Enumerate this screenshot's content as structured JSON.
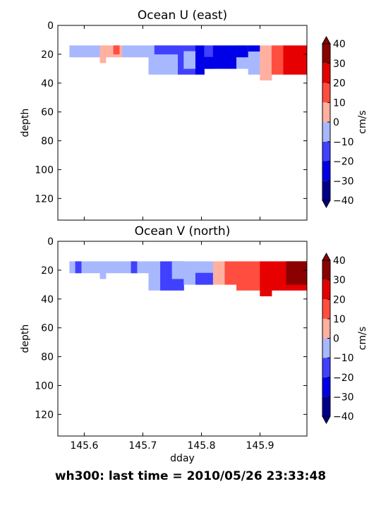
{
  "footer": {
    "text": "wh300: last time = 2010/05/26 23:33:48"
  },
  "colors": {
    "levels": [
      "#00008b",
      "#0000e8",
      "#4040ff",
      "#a8b8ff",
      "#ffb0a0",
      "#ff4e40",
      "#e60000",
      "#8b0000"
    ],
    "level_bounds": [
      -40,
      -30,
      -20,
      -10,
      0,
      10,
      20,
      30,
      40
    ]
  },
  "chart_data": [
    {
      "type": "heatmap",
      "title": "Ocean U (east)",
      "xlabel": "",
      "ylabel": "depth",
      "xlim": [
        145.555,
        145.98
      ],
      "ylim": [
        135,
        0
      ],
      "x_ticks": [
        145.6,
        145.7,
        145.8,
        145.9
      ],
      "x_tick_labels": [],
      "y_ticks": [
        0,
        20,
        40,
        60,
        80,
        100,
        120
      ],
      "y_tick_labels": [
        "0",
        "20",
        "40",
        "60",
        "80",
        "100",
        "120"
      ],
      "colorbar": {
        "label": "cm/s",
        "ticks": [
          "−40",
          "−30",
          "−20",
          "−10",
          "0",
          "10",
          "20",
          "30",
          "40"
        ],
        "extend": "both"
      },
      "cells": [
        {
          "x": [
            145.575,
            145.627
          ],
          "depth": [
            14,
            22
          ],
          "v": -5
        },
        {
          "x": [
            145.627,
            145.665
          ],
          "depth": [
            14,
            22
          ],
          "v": 5
        },
        {
          "x": [
            145.627,
            145.637
          ],
          "depth": [
            22,
            26
          ],
          "v": 5
        },
        {
          "x": [
            145.637,
            145.665
          ],
          "depth": [
            22,
            22
          ],
          "v": 5
        },
        {
          "x": [
            145.65,
            145.66
          ],
          "depth": [
            14,
            20
          ],
          "v": 15
        },
        {
          "x": [
            145.665,
            145.71
          ],
          "depth": [
            14,
            22
          ],
          "v": -5
        },
        {
          "x": [
            145.71,
            145.76
          ],
          "depth": [
            14,
            34
          ],
          "v": -5
        },
        {
          "x": [
            145.72,
            145.76
          ],
          "depth": [
            14,
            20
          ],
          "v": -15
        },
        {
          "x": [
            145.76,
            145.79
          ],
          "depth": [
            14,
            34
          ],
          "v": -15
        },
        {
          "x": [
            145.77,
            145.79
          ],
          "depth": [
            18,
            30
          ],
          "v": -5
        },
        {
          "x": [
            145.79,
            145.805
          ],
          "depth": [
            14,
            34
          ],
          "v": -25
        },
        {
          "x": [
            145.805,
            145.82
          ],
          "depth": [
            14,
            30
          ],
          "v": -15
        },
        {
          "x": [
            145.805,
            145.84
          ],
          "depth": [
            22,
            30
          ],
          "v": -25
        },
        {
          "x": [
            145.82,
            145.84
          ],
          "depth": [
            14,
            22
          ],
          "v": -25
        },
        {
          "x": [
            145.84,
            145.86
          ],
          "depth": [
            14,
            30
          ],
          "v": -25
        },
        {
          "x": [
            145.86,
            145.88
          ],
          "depth": [
            14,
            30
          ],
          "v": -5
        },
        {
          "x": [
            145.86,
            145.88
          ],
          "depth": [
            14,
            22
          ],
          "v": -25
        },
        {
          "x": [
            145.88,
            145.9
          ],
          "depth": [
            14,
            34
          ],
          "v": -5
        },
        {
          "x": [
            145.88,
            145.9
          ],
          "depth": [
            14,
            18
          ],
          "v": -25
        },
        {
          "x": [
            145.9,
            145.92
          ],
          "depth": [
            14,
            38
          ],
          "v": 5
        },
        {
          "x": [
            145.92,
            145.94
          ],
          "depth": [
            14,
            34
          ],
          "v": 15
        },
        {
          "x": [
            145.94,
            145.98
          ],
          "depth": [
            14,
            34
          ],
          "v": 25
        }
      ]
    },
    {
      "type": "heatmap",
      "title": "Ocean V (north)",
      "xlabel": "dday",
      "ylabel": "depth",
      "xlim": [
        145.555,
        145.98
      ],
      "ylim": [
        135,
        0
      ],
      "x_ticks": [
        145.6,
        145.7,
        145.8,
        145.9
      ],
      "x_tick_labels": [
        "145.6",
        "145.7",
        "145.8",
        "145.9"
      ],
      "y_ticks": [
        0,
        20,
        40,
        60,
        80,
        100,
        120
      ],
      "y_tick_labels": [
        "0",
        "20",
        "40",
        "60",
        "80",
        "100",
        "120"
      ],
      "colorbar": {
        "label": "cm/s",
        "ticks": [
          "−40",
          "−30",
          "−20",
          "−10",
          "0",
          "10",
          "20",
          "30",
          "40"
        ],
        "extend": "both"
      },
      "cells": [
        {
          "x": [
            145.575,
            145.627
          ],
          "depth": [
            14,
            22
          ],
          "v": -5
        },
        {
          "x": [
            145.585,
            145.595
          ],
          "depth": [
            14,
            22
          ],
          "v": -15
        },
        {
          "x": [
            145.627,
            145.665
          ],
          "depth": [
            14,
            22
          ],
          "v": -5
        },
        {
          "x": [
            145.627,
            145.637
          ],
          "depth": [
            22,
            26
          ],
          "v": -5
        },
        {
          "x": [
            145.665,
            145.71
          ],
          "depth": [
            14,
            22
          ],
          "v": -5
        },
        {
          "x": [
            145.68,
            145.69
          ],
          "depth": [
            14,
            22
          ],
          "v": -15
        },
        {
          "x": [
            145.71,
            145.73
          ],
          "depth": [
            14,
            34
          ],
          "v": -5
        },
        {
          "x": [
            145.73,
            145.77
          ],
          "depth": [
            14,
            34
          ],
          "v": -15
        },
        {
          "x": [
            145.75,
            145.77
          ],
          "depth": [
            14,
            26
          ],
          "v": -5
        },
        {
          "x": [
            145.77,
            145.82
          ],
          "depth": [
            14,
            30
          ],
          "v": -5
        },
        {
          "x": [
            145.79,
            145.82
          ],
          "depth": [
            22,
            30
          ],
          "v": -15
        },
        {
          "x": [
            145.82,
            145.84
          ],
          "depth": [
            14,
            30
          ],
          "v": 5
        },
        {
          "x": [
            145.84,
            145.86
          ],
          "depth": [
            14,
            30
          ],
          "v": 15
        },
        {
          "x": [
            145.86,
            145.9
          ],
          "depth": [
            14,
            34
          ],
          "v": 15
        },
        {
          "x": [
            145.9,
            145.92
          ],
          "depth": [
            14,
            38
          ],
          "v": 25
        },
        {
          "x": [
            145.92,
            145.98
          ],
          "depth": [
            14,
            34
          ],
          "v": 25
        },
        {
          "x": [
            145.945,
            145.98
          ],
          "depth": [
            14,
            30
          ],
          "v": 35
        }
      ]
    }
  ]
}
